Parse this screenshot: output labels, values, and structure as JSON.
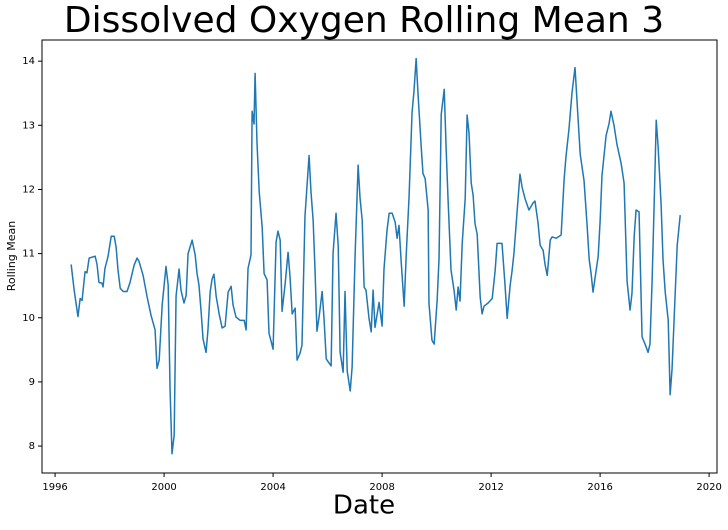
{
  "chart_data": {
    "type": "line",
    "title": "Dissolved Oxygen Rolling Mean 3",
    "x_label": "Date",
    "y_label": "Rolling Mean",
    "xlim": [
      1995.52,
      2020.29
    ],
    "ylim": [
      7.58,
      14.33
    ],
    "xticks": [
      1996,
      2000,
      2004,
      2008,
      2012,
      2016,
      2020
    ],
    "yticks": [
      8,
      9,
      10,
      11,
      12,
      13,
      14
    ],
    "grid": false,
    "x": [
      1996.59,
      1996.7,
      1996.84,
      1996.92,
      1996.99,
      1997.1,
      1997.17,
      1997.25,
      1997.47,
      1997.54,
      1997.61,
      1997.72,
      1997.76,
      1997.83,
      1997.94,
      1998.06,
      1998.17,
      1998.24,
      1998.31,
      1998.39,
      1998.5,
      1998.64,
      1998.75,
      1998.9,
      1999.01,
      1999.08,
      1999.23,
      1999.38,
      1999.52,
      1999.67,
      1999.74,
      1999.82,
      1999.93,
      2000.07,
      2000.15,
      2000.22,
      2000.29,
      2000.37,
      2000.44,
      2000.55,
      2000.62,
      2000.73,
      2000.81,
      2000.88,
      2001.03,
      2001.14,
      2001.21,
      2001.28,
      2001.36,
      2001.43,
      2001.54,
      2001.61,
      2001.69,
      2001.76,
      2001.83,
      2001.91,
      2002.02,
      2002.13,
      2002.24,
      2002.35,
      2002.46,
      2002.53,
      2002.64,
      2002.79,
      2002.94,
      2003.01,
      2003.08,
      2003.19,
      2003.23,
      2003.3,
      2003.34,
      2003.41,
      2003.49,
      2003.6,
      2003.67,
      2003.78,
      2003.85,
      2004.0,
      2004.11,
      2004.18,
      2004.26,
      2004.33,
      2004.44,
      2004.55,
      2004.62,
      2004.7,
      2004.81,
      2004.88,
      2004.99,
      2005.06,
      2005.17,
      2005.32,
      2005.39,
      2005.47,
      2005.54,
      2005.61,
      2005.69,
      2005.8,
      2005.87,
      2005.95,
      2006.06,
      2006.13,
      2006.2,
      2006.31,
      2006.39,
      2006.46,
      2006.57,
      2006.64,
      2006.72,
      2006.83,
      2006.9,
      2007.01,
      2007.12,
      2007.19,
      2007.27,
      2007.34,
      2007.41,
      2007.52,
      2007.6,
      2007.67,
      2007.74,
      2007.89,
      2008.0,
      2008.07,
      2008.18,
      2008.26,
      2008.37,
      2008.48,
      2008.55,
      2008.62,
      2008.7,
      2008.81,
      2008.88,
      2008.99,
      2009.1,
      2009.17,
      2009.25,
      2009.32,
      2009.43,
      2009.5,
      2009.58,
      2009.69,
      2009.72,
      2009.83,
      2009.91,
      2010.02,
      2010.09,
      2010.17,
      2010.28,
      2010.35,
      2010.42,
      2010.53,
      2010.64,
      2010.72,
      2010.79,
      2010.86,
      2010.94,
      2011.05,
      2011.12,
      2011.19,
      2011.27,
      2011.34,
      2011.41,
      2011.49,
      2011.6,
      2011.67,
      2011.74,
      2011.89,
      2012.04,
      2012.15,
      2012.22,
      2012.4,
      2012.51,
      2012.59,
      2012.7,
      2012.77,
      2012.84,
      2012.95,
      2013.06,
      2013.14,
      2013.25,
      2013.39,
      2013.54,
      2013.61,
      2013.72,
      2013.8,
      2013.91,
      2013.98,
      2014.06,
      2014.17,
      2014.24,
      2014.39,
      2014.57,
      2014.68,
      2014.75,
      2014.86,
      2014.97,
      2015.08,
      2015.16,
      2015.27,
      2015.41,
      2015.52,
      2015.6,
      2015.67,
      2015.74,
      2015.93,
      2016.0,
      2016.07,
      2016.22,
      2016.33,
      2016.4,
      2016.51,
      2016.62,
      2016.77,
      2016.88,
      2016.99,
      2017.1,
      2017.17,
      2017.25,
      2017.32,
      2017.43,
      2017.54,
      2017.65,
      2017.76,
      2017.83,
      2017.91,
      2017.98,
      2018.06,
      2018.13,
      2018.24,
      2018.31,
      2018.39,
      2018.5,
      2018.57,
      2018.64,
      2018.75,
      2018.83,
      2018.94
    ],
    "series": [
      {
        "color": "#1f77b4",
        "values": [
          10.83,
          10.43,
          10.02,
          10.3,
          10.27,
          10.72,
          10.7,
          10.93,
          10.96,
          10.83,
          10.55,
          10.54,
          10.48,
          10.77,
          10.95,
          11.27,
          11.27,
          11.1,
          10.74,
          10.46,
          10.41,
          10.41,
          10.55,
          10.82,
          10.93,
          10.88,
          10.66,
          10.32,
          10.04,
          9.81,
          9.21,
          9.34,
          10.2,
          10.8,
          10.51,
          8.87,
          7.88,
          8.17,
          10.34,
          10.76,
          10.43,
          10.23,
          10.35,
          11.0,
          11.21,
          10.98,
          10.69,
          10.51,
          10.09,
          9.67,
          9.46,
          9.81,
          10.4,
          10.6,
          10.68,
          10.34,
          10.06,
          9.84,
          9.87,
          10.4,
          10.49,
          10.2,
          10.01,
          9.96,
          9.96,
          9.81,
          10.77,
          10.98,
          13.22,
          13.02,
          13.81,
          12.72,
          11.97,
          11.41,
          10.69,
          10.59,
          9.76,
          9.51,
          11.18,
          11.35,
          11.21,
          10.1,
          10.52,
          11.02,
          10.65,
          10.06,
          10.15,
          9.34,
          9.45,
          9.57,
          11.58,
          12.53,
          11.97,
          11.52,
          10.73,
          9.79,
          10.02,
          10.41,
          9.98,
          9.36,
          9.29,
          9.25,
          11.0,
          11.63,
          11.12,
          9.46,
          9.15,
          10.41,
          9.17,
          8.86,
          9.23,
          10.98,
          12.38,
          11.87,
          11.52,
          10.48,
          10.43,
          9.99,
          9.78,
          10.43,
          9.85,
          10.24,
          9.87,
          10.76,
          11.36,
          11.63,
          11.63,
          11.49,
          11.24,
          11.44,
          10.88,
          10.18,
          10.93,
          11.89,
          13.2,
          13.53,
          14.04,
          13.48,
          12.7,
          12.25,
          12.17,
          11.68,
          10.23,
          9.65,
          9.59,
          10.27,
          10.93,
          13.17,
          13.56,
          12.64,
          11.85,
          10.74,
          10.43,
          10.12,
          10.48,
          10.26,
          11.16,
          11.86,
          13.16,
          12.88,
          12.1,
          11.91,
          11.47,
          11.3,
          10.32,
          10.06,
          10.18,
          10.23,
          10.3,
          10.74,
          11.16,
          11.16,
          10.52,
          9.99,
          10.51,
          10.73,
          11.01,
          11.63,
          12.24,
          12.03,
          11.85,
          11.68,
          11.79,
          11.82,
          11.49,
          11.13,
          11.05,
          10.83,
          10.66,
          11.21,
          11.26,
          11.24,
          11.29,
          12.16,
          12.52,
          12.95,
          13.51,
          13.9,
          13.33,
          12.55,
          12.14,
          11.46,
          10.91,
          10.69,
          10.4,
          10.96,
          11.5,
          12.22,
          12.84,
          13.03,
          13.22,
          13.0,
          12.7,
          12.41,
          12.1,
          10.57,
          10.12,
          10.38,
          11.26,
          11.68,
          11.65,
          9.7,
          9.59,
          9.46,
          9.59,
          10.59,
          11.71,
          13.08,
          12.66,
          11.75,
          10.9,
          10.4,
          9.96,
          8.8,
          9.2,
          10.32,
          11.13,
          11.6
        ]
      }
    ]
  }
}
